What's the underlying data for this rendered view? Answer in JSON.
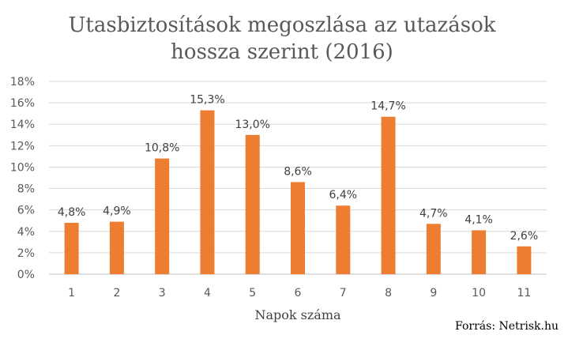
{
  "chart_data": {
    "type": "bar",
    "title": "Utasbiztosítások megoszlása az utazások hossza szerint (2016)",
    "title_lines": [
      "Utasbiztosítások megoszlása az utazások",
      "hossza szerint (2016)"
    ],
    "xlabel": "Napok száma",
    "ylabel": "",
    "categories": [
      "1",
      "2",
      "3",
      "4",
      "5",
      "6",
      "7",
      "8",
      "9",
      "10",
      "11"
    ],
    "values": [
      4.8,
      4.9,
      10.8,
      15.3,
      13.0,
      8.6,
      6.4,
      14.7,
      4.7,
      4.1,
      2.6
    ],
    "data_labels": [
      "4,8%",
      "4,9%",
      "10,8%",
      "15,3%",
      "13,0%",
      "8,6%",
      "6,4%",
      "14,7%",
      "4,7%",
      "4,1%",
      "2,6%"
    ],
    "y_ticks": [
      0,
      2,
      4,
      6,
      8,
      10,
      12,
      14,
      16,
      18
    ],
    "y_tick_labels": [
      "0%",
      "2%",
      "4%",
      "6%",
      "8%",
      "10%",
      "12%",
      "14%",
      "16%",
      "18%"
    ],
    "ylim": [
      0,
      18
    ],
    "grid": true,
    "legend": "none",
    "bar_color": "#ED7D31",
    "grid_color": "#D9D9D9",
    "source": "Forrás: Netrisk.hu"
  }
}
